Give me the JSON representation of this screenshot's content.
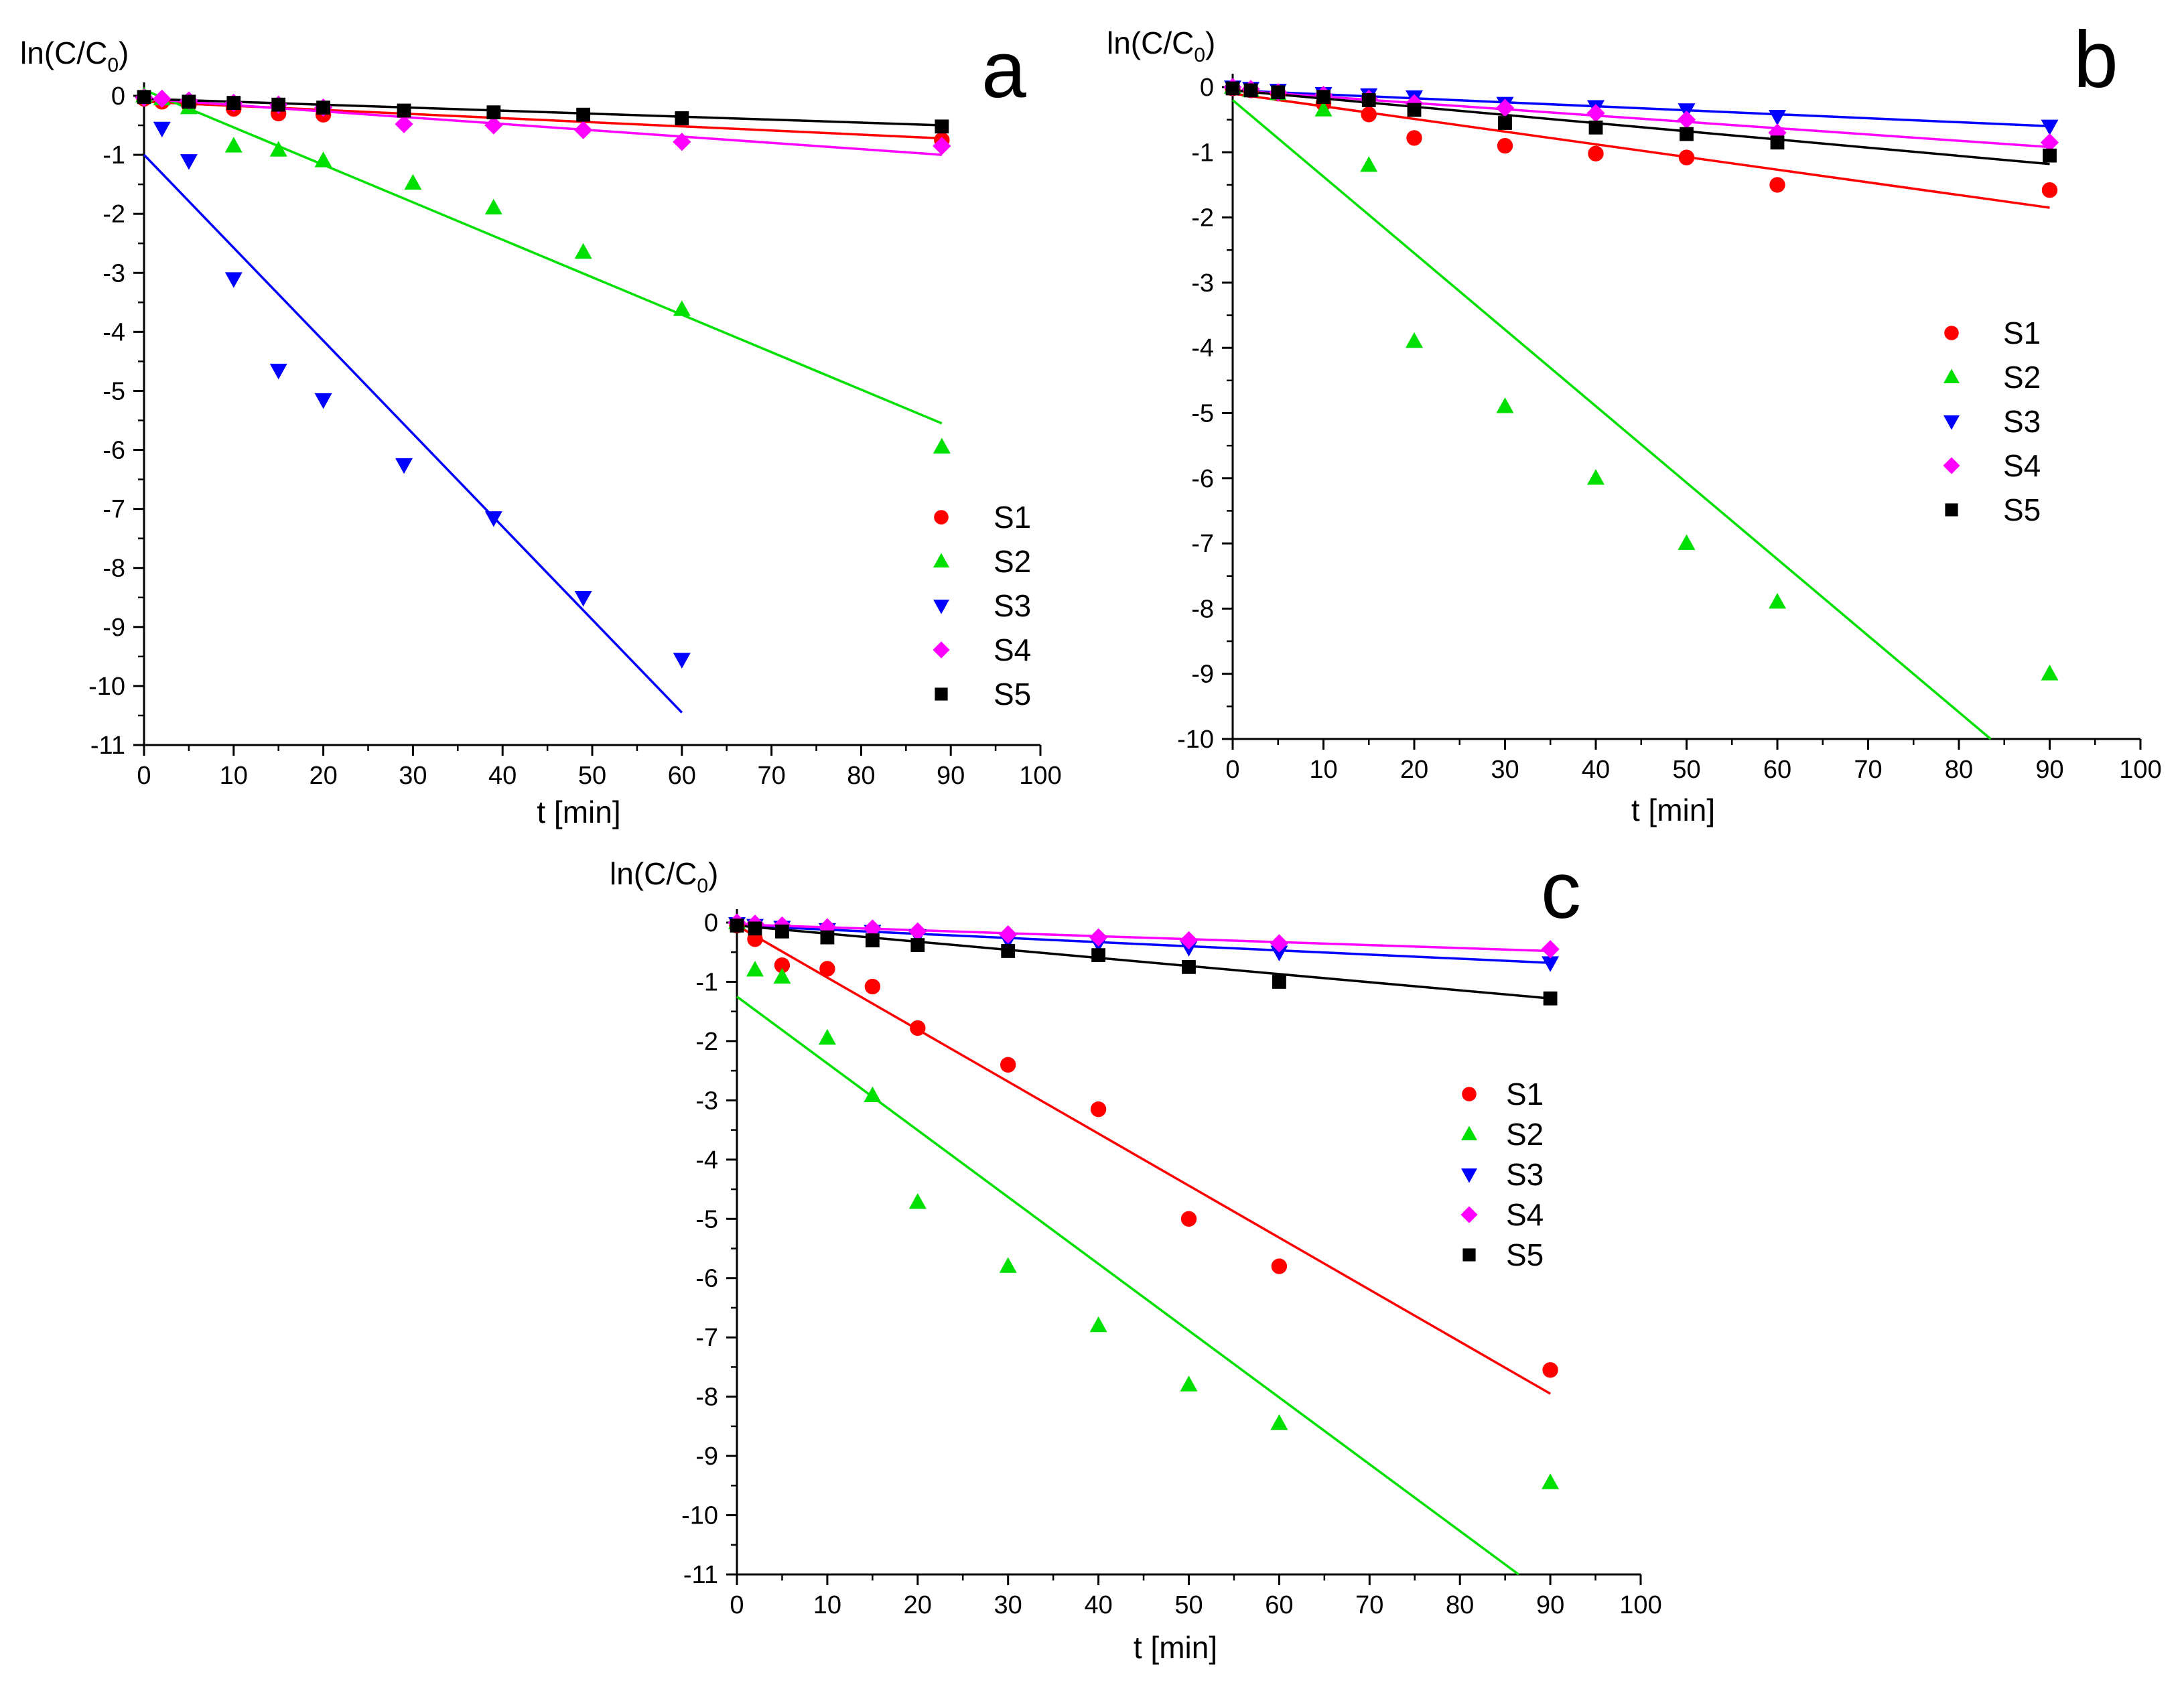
{
  "figure": {
    "panels": [
      "a",
      "b",
      "c"
    ]
  },
  "chart_data": [
    {
      "panel": "a",
      "type": "scatter",
      "title": "",
      "xlabel": "t [min]",
      "ylabel": "ln(C/C0)",
      "ylabel_main": "ln(C/C",
      "ylabel_sub": "0",
      "ylabel_close": ")",
      "xlim": [
        0,
        100
      ],
      "ylim": [
        -11,
        0
      ],
      "xticks": [
        0,
        10,
        20,
        30,
        40,
        50,
        60,
        70,
        80,
        90,
        100
      ],
      "yticks": [
        0,
        -1,
        -2,
        -3,
        -4,
        -5,
        -6,
        -7,
        -8,
        -9,
        -10,
        -11
      ],
      "legend_position": "lower-right",
      "series": [
        {
          "name": "S1",
          "color": "#ff0000",
          "marker": "circle",
          "x": [
            0,
            2,
            5,
            10,
            15,
            20,
            89
          ],
          "y": [
            -0.05,
            -0.1,
            -0.15,
            -0.22,
            -0.3,
            -0.32,
            -0.75
          ],
          "fit": [
            [
              0,
              -0.1
            ],
            [
              89,
              -0.72
            ]
          ]
        },
        {
          "name": "S2",
          "color": "#00e000",
          "marker": "triangle-up",
          "x": [
            0,
            2,
            5,
            10,
            15,
            20,
            30,
            39,
            49,
            60,
            89
          ],
          "y": [
            0,
            -0.05,
            -0.2,
            -0.85,
            -0.92,
            -1.1,
            -1.48,
            -1.9,
            -2.65,
            -3.62,
            -5.95
          ],
          "fit": [
            [
              0,
              0.1
            ],
            [
              89,
              -5.55
            ]
          ]
        },
        {
          "name": "S3",
          "color": "#0000ff",
          "marker": "triangle-down",
          "x": [
            2,
            5,
            10,
            15,
            20,
            29,
            39,
            49,
            60
          ],
          "y": [
            -0.55,
            -1.1,
            -3.1,
            -4.65,
            -5.15,
            -6.25,
            -7.15,
            -8.5,
            -9.55
          ],
          "fit": [
            [
              0,
              -1.0
            ],
            [
              60,
              -10.45
            ]
          ]
        },
        {
          "name": "S4",
          "color": "#ff00ff",
          "marker": "diamond",
          "x": [
            0,
            2,
            5,
            10,
            15,
            20,
            29,
            39,
            49,
            60,
            89
          ],
          "y": [
            -0.03,
            -0.05,
            -0.08,
            -0.12,
            -0.15,
            -0.2,
            -0.48,
            -0.5,
            -0.58,
            -0.78,
            -0.85
          ],
          "fit": [
            [
              0,
              -0.05
            ],
            [
              89,
              -1.0
            ]
          ]
        },
        {
          "name": "S5",
          "color": "#000000",
          "marker": "square",
          "x": [
            0,
            5,
            10,
            15,
            20,
            29,
            39,
            49,
            60,
            89
          ],
          "y": [
            -0.02,
            -0.1,
            -0.12,
            -0.15,
            -0.2,
            -0.25,
            -0.28,
            -0.32,
            -0.38,
            -0.52
          ],
          "fit": [
            [
              0,
              -0.05
            ],
            [
              89,
              -0.5
            ]
          ]
        }
      ]
    },
    {
      "panel": "b",
      "type": "scatter",
      "title": "",
      "xlabel": "t [min]",
      "ylabel": "ln(C/C0)",
      "ylabel_main": "ln(C/C",
      "ylabel_sub": "0",
      "ylabel_close": ")",
      "xlim": [
        0,
        100
      ],
      "ylim": [
        -10,
        0
      ],
      "xticks": [
        0,
        10,
        20,
        30,
        40,
        50,
        60,
        70,
        80,
        90,
        100
      ],
      "yticks": [
        0,
        -1,
        -2,
        -3,
        -4,
        -5,
        -6,
        -7,
        -8,
        -9,
        -10
      ],
      "legend_position": "center-right",
      "series": [
        {
          "name": "S1",
          "color": "#ff0000",
          "marker": "circle",
          "x": [
            0,
            2,
            5,
            10,
            15,
            20,
            30,
            40,
            50,
            60,
            90
          ],
          "y": [
            -0.02,
            -0.05,
            -0.1,
            -0.25,
            -0.42,
            -0.78,
            -0.9,
            -1.02,
            -1.08,
            -1.5,
            -1.58
          ],
          "fit": [
            [
              0,
              -0.1
            ],
            [
              90,
              -1.85
            ]
          ]
        },
        {
          "name": "S2",
          "color": "#00e000",
          "marker": "triangle-up",
          "x": [
            0,
            2,
            5,
            10,
            15,
            20,
            30,
            40,
            50,
            60,
            90
          ],
          "y": [
            0,
            -0.05,
            -0.1,
            -0.35,
            -1.2,
            -3.9,
            -4.9,
            -6.0,
            -7.0,
            -7.9,
            -9.0
          ],
          "fit": [
            [
              0,
              -0.2
            ],
            [
              83.5,
              -10
            ]
          ]
        },
        {
          "name": "S3",
          "color": "#0000ff",
          "marker": "triangle-down",
          "x": [
            0,
            2,
            5,
            10,
            15,
            20,
            30,
            40,
            50,
            60,
            90
          ],
          "y": [
            0,
            -0.02,
            -0.05,
            -0.1,
            -0.12,
            -0.15,
            -0.25,
            -0.3,
            -0.35,
            -0.45,
            -0.6
          ],
          "fit": [
            [
              0,
              -0.05
            ],
            [
              90,
              -0.6
            ]
          ]
        },
        {
          "name": "S4",
          "color": "#ff00ff",
          "marker": "diamond",
          "x": [
            0,
            2,
            5,
            10,
            15,
            20,
            30,
            40,
            50,
            60,
            90
          ],
          "y": [
            0,
            -0.03,
            -0.08,
            -0.12,
            -0.18,
            -0.25,
            -0.32,
            -0.4,
            -0.5,
            -0.7,
            -0.85
          ],
          "fit": [
            [
              0,
              -0.05
            ],
            [
              90,
              -0.92
            ]
          ]
        },
        {
          "name": "S5",
          "color": "#000000",
          "marker": "square",
          "x": [
            0,
            2,
            5,
            10,
            15,
            20,
            30,
            40,
            50,
            60,
            90
          ],
          "y": [
            -0.02,
            -0.05,
            -0.08,
            -0.15,
            -0.2,
            -0.35,
            -0.55,
            -0.62,
            -0.72,
            -0.85,
            -1.05
          ],
          "fit": [
            [
              0,
              -0.05
            ],
            [
              90,
              -1.18
            ]
          ]
        }
      ]
    },
    {
      "panel": "c",
      "type": "scatter",
      "title": "",
      "xlabel": "t [min]",
      "ylabel": "ln(C/C0)",
      "ylabel_main": "ln(C/C",
      "ylabel_sub": "0",
      "ylabel_close": ")",
      "xlim": [
        0,
        100
      ],
      "ylim": [
        -11,
        0
      ],
      "xticks": [
        0,
        10,
        20,
        30,
        40,
        50,
        60,
        70,
        80,
        90,
        100
      ],
      "yticks": [
        0,
        -1,
        -2,
        -3,
        -4,
        -5,
        -6,
        -7,
        -8,
        -9,
        -10,
        -11
      ],
      "legend_position": "center-right",
      "series": [
        {
          "name": "S1",
          "color": "#ff0000",
          "marker": "circle",
          "x": [
            0,
            2,
            5,
            10,
            15,
            20,
            30,
            40,
            50,
            60,
            90
          ],
          "y": [
            -0.05,
            -0.28,
            -0.72,
            -0.78,
            -1.08,
            -1.78,
            -2.4,
            -3.15,
            -5.0,
            -5.8,
            -7.55
          ],
          "fit": [
            [
              0,
              -0.05
            ],
            [
              90,
              -7.95
            ]
          ]
        },
        {
          "name": "S2",
          "color": "#00e000",
          "marker": "triangle-up",
          "x": [
            0,
            2,
            5,
            10,
            15,
            20,
            30,
            40,
            50,
            60,
            90
          ],
          "y": [
            0,
            -0.8,
            -0.92,
            -1.95,
            -2.92,
            -4.72,
            -5.8,
            -6.8,
            -7.8,
            -8.45,
            -9.45
          ],
          "fit": [
            [
              0,
              -1.25
            ],
            [
              86.5,
              -11
            ]
          ]
        },
        {
          "name": "S3",
          "color": "#0000ff",
          "marker": "triangle-down",
          "x": [
            0,
            2,
            5,
            10,
            15,
            20,
            30,
            40,
            50,
            60,
            90
          ],
          "y": [
            -0.02,
            -0.05,
            -0.08,
            -0.12,
            -0.15,
            -0.22,
            -0.3,
            -0.35,
            -0.42,
            -0.5,
            -0.68
          ],
          "fit": [
            [
              0,
              -0.05
            ],
            [
              90,
              -0.68
            ]
          ]
        },
        {
          "name": "S4",
          "color": "#ff00ff",
          "marker": "diamond",
          "x": [
            0,
            2,
            5,
            10,
            15,
            20,
            30,
            40,
            50,
            60,
            90
          ],
          "y": [
            0,
            -0.02,
            -0.05,
            -0.08,
            -0.1,
            -0.15,
            -0.2,
            -0.25,
            -0.3,
            -0.35,
            -0.45
          ],
          "fit": [
            [
              0,
              -0.03
            ],
            [
              90,
              -0.48
            ]
          ]
        },
        {
          "name": "S5",
          "color": "#000000",
          "marker": "square",
          "x": [
            0,
            2,
            5,
            10,
            15,
            20,
            30,
            40,
            50,
            60,
            90
          ],
          "y": [
            -0.05,
            -0.1,
            -0.15,
            -0.25,
            -0.3,
            -0.38,
            -0.48,
            -0.55,
            -0.75,
            -1.0,
            -1.28
          ],
          "fit": [
            [
              0,
              -0.05
            ],
            [
              90,
              -1.28
            ]
          ]
        }
      ]
    }
  ]
}
